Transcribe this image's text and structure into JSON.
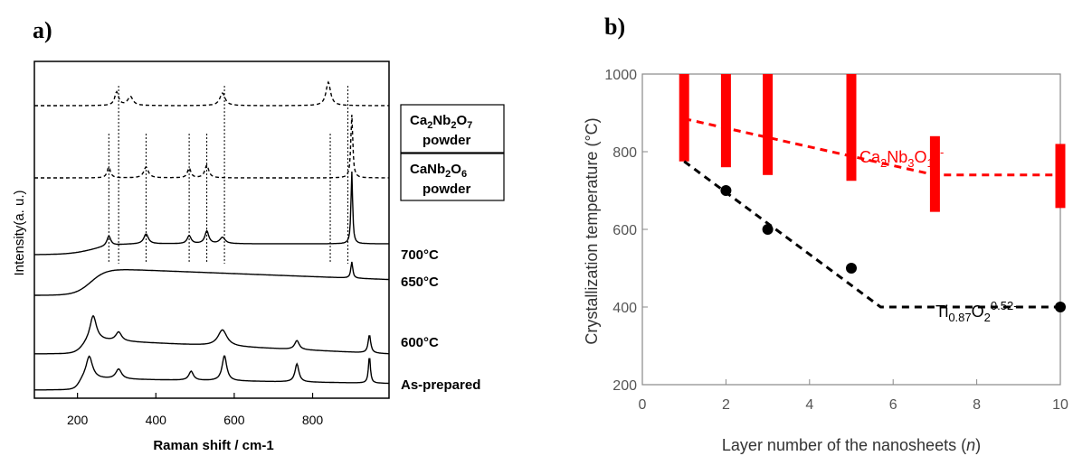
{
  "chart_data": [
    {
      "panel_label": "a)",
      "type": "line",
      "xlabel": "Raman shift / cm-1",
      "ylabel": "Intensity(a. u.)",
      "xlim": [
        90,
        995
      ],
      "xticks": [
        "200",
        "400",
        "600",
        "800"
      ],
      "series": [
        {
          "name": "Ca2Nb2O7 powder",
          "label_text": "Ca2Nb2O7",
          "label_sub": "powder",
          "style": "dashed",
          "peaks_cm1": [
            300,
            335,
            570,
            840
          ]
        },
        {
          "name": "CaNb2O6 powder",
          "label_text": "CaNb2O6",
          "label_sub": "powder",
          "style": "dashed",
          "peaks_cm1": [
            280,
            375,
            485,
            530,
            900
          ]
        },
        {
          "name": "700°C",
          "style": "solid",
          "peaks_cm1": [
            280,
            375,
            485,
            530,
            570,
            840,
            900
          ]
        },
        {
          "name": "650°C",
          "style": "solid",
          "peaks_cm1": [
            900
          ]
        },
        {
          "name": "600°C",
          "style": "solid",
          "peaks_cm1": [
            240,
            305,
            570,
            760,
            945
          ]
        },
        {
          "name": "As-prepared",
          "style": "solid",
          "peaks_cm1": [
            230,
            305,
            490,
            575,
            760,
            945
          ]
        }
      ],
      "reference_lines_cm1": [
        280,
        305,
        375,
        485,
        530,
        575,
        845,
        890
      ]
    },
    {
      "panel_label": "b)",
      "type": "scatter",
      "xlabel": "Layer number of the nanosheets (n)",
      "ylabel": "Crystallization temperature (°C)",
      "xlim": [
        0,
        10
      ],
      "ylim": [
        200,
        1000
      ],
      "xticks": [
        "0",
        "2",
        "4",
        "6",
        "8",
        "10"
      ],
      "yticks": [
        "200",
        "400",
        "600",
        "800",
        "1000"
      ],
      "series": [
        {
          "name": "Ca2Nb3O10-",
          "color": "#ff0000",
          "marker": "error-bar",
          "ranges": [
            {
              "x": 1,
              "low": 775,
              "high": 1000
            },
            {
              "x": 2,
              "low": 760,
              "high": 1000
            },
            {
              "x": 3,
              "low": 740,
              "high": 1000
            },
            {
              "x": 5,
              "low": 725,
              "high": 1000
            },
            {
              "x": 7,
              "low": 645,
              "high": 840
            },
            {
              "x": 10,
              "low": 655,
              "high": 820
            }
          ],
          "trend": [
            [
              1,
              885
            ],
            [
              7,
              740
            ],
            [
              10,
              740
            ]
          ]
        },
        {
          "name": "Ti0.87O2 0.52-",
          "color": "#000000",
          "marker": "circle",
          "points": [
            {
              "x": 2,
              "y": 700
            },
            {
              "x": 3,
              "y": 600
            },
            {
              "x": 5,
              "y": 500
            },
            {
              "x": 10,
              "y": 400
            }
          ],
          "trend": [
            [
              1,
              775
            ],
            [
              5.7,
              400
            ],
            [
              10,
              400
            ]
          ]
        }
      ]
    }
  ]
}
